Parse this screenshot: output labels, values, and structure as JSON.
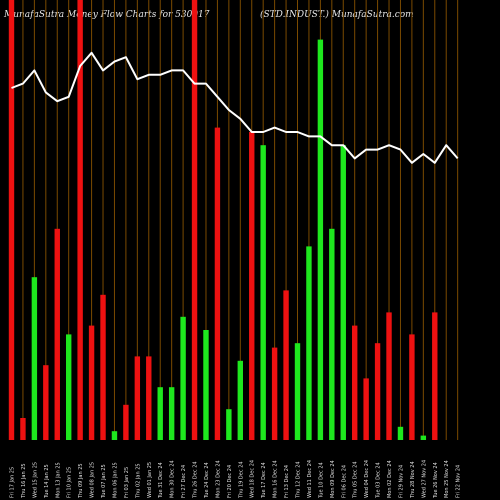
{
  "header": {
    "left": "MunafaSutra  Money Flow  Charts for 530017",
    "right": "(STD.INDUST.) MunafaSutra.com"
  },
  "colors": {
    "background": "#000000",
    "positive": "#1ee81e",
    "negative": "#ee1111",
    "grid": "#7a4a00",
    "price_line": "#ffffff",
    "labels": "#e0e0e0"
  },
  "chart_data": {
    "type": "bar",
    "title": "",
    "xlabel": "",
    "ylabel": "",
    "ylim": [
      0,
      100
    ],
    "grid": true,
    "categories": [
      "Fri 17 Jan 2025",
      "Thu 16 Jan 2025",
      "Wed 15 Jan 2025",
      "Tue 14 Jan 2025",
      "Mon 13 Jan 2025",
      "Fri 10 Jan 2025",
      "Thu 09 Jan 2025",
      "Wed 08 Jan 2025",
      "Tue 07 Jan 2025",
      "Mon 06 Jan 2025",
      "Fri 03 Jan 2025",
      "Thu 02 Jan 2025",
      "Wed 01 Jan 2025",
      "Tue 31 Dec 2024",
      "Mon 30 Dec 2024",
      "Fri 27 Dec 2024",
      "Thu 26 Dec 2024",
      "Tue 24 Dec 2024",
      "Mon 23 Dec 2024",
      "Fri 20 Dec 2024",
      "Thu 19 Dec 2024",
      "Wed 18 Dec 2024",
      "Tue 17 Dec 2024",
      "Mon 16 Dec 2024",
      "Fri 13 Dec 2024",
      "Thu 12 Dec 2024",
      "Wed 11 Dec 2024",
      "Tue 10 Dec 2024",
      "Mon 09 Dec 2024",
      "Fri 06 Dec 2024",
      "Thu 05 Dec 2024",
      "Wed 04 Dec 2024",
      "Tue 03 Dec 2024",
      "Mon 02 Dec 2024",
      "Fri 29 Nov 2024",
      "Thu 28 Nov 2024",
      "Wed 27 Nov 2024",
      "Tue 26 Nov 2024",
      "Mon 25 Nov 2024",
      "Fri 22 Nov 2024"
    ],
    "tick_labels": [
      "Fri 17 Jan 25",
      "Thu 16 Jan 25",
      "Wed 15 Jan 25",
      "Tue 14 Jan 25",
      "Mon 13 Jan 25",
      "Fri 10 Jan 25",
      "Thu 09 Jan 25",
      "Wed 08 Jan 25",
      "Tue 07 Jan 25",
      "Mon 06 Jan 25",
      "Fri 03 Jan 25",
      "Thu 02 Jan 25",
      "Wed 01 Jan 25",
      "Tue 31 Dec 24",
      "Mon 30 Dec 24",
      "Fri 27 Dec 24",
      "Thu 26 Dec 24",
      "Tue 24 Dec 24",
      "Mon 23 Dec 24",
      "Fri 20 Dec 24",
      "Thu 19 Dec 24",
      "Wed 18 Dec 24",
      "Tue 17 Dec 24",
      "Mon 16 Dec 24",
      "Fri 13 Dec 24",
      "Thu 12 Dec 24",
      "Wed 11 Dec 24",
      "Tue 10 Dec 24",
      "Mon 09 Dec 24",
      "Fri 06 Dec 24",
      "Thu 05 Dec 24",
      "Wed 04 Dec 24",
      "Tue 03 Dec 24",
      "Mon 02 Dec 24",
      "Fri 29 Nov 24",
      "Thu 28 Nov 24",
      "Wed 27 Nov 24",
      "Tue 26 Nov 24",
      "Mon 25 Nov 24",
      "Fri 22 Nov 24"
    ],
    "values": [
      100,
      5,
      37,
      17,
      48,
      24,
      100,
      26,
      33,
      2,
      8,
      19,
      19,
      12,
      12,
      28,
      100,
      25,
      71,
      7,
      18,
      70,
      67,
      21,
      34,
      22,
      44,
      91,
      48,
      67,
      26,
      14,
      22,
      29,
      3,
      24,
      1,
      29,
      0,
      0
    ],
    "colors": [
      "red",
      "red",
      "green",
      "red",
      "red",
      "green",
      "red",
      "red",
      "red",
      "green",
      "red",
      "red",
      "red",
      "green",
      "green",
      "green",
      "red",
      "green",
      "red",
      "green",
      "green",
      "red",
      "green",
      "red",
      "red",
      "green",
      "green",
      "green",
      "green",
      "green",
      "red",
      "red",
      "red",
      "red",
      "green",
      "red",
      "green",
      "red",
      "red",
      "red"
    ],
    "price_line": [
      80,
      81,
      84,
      79,
      77,
      78,
      85,
      88,
      84,
      86,
      87,
      82,
      83,
      83,
      84,
      84,
      81,
      81,
      78,
      75,
      73,
      70,
      70,
      71,
      70,
      70,
      69,
      69,
      67,
      67,
      64,
      66,
      66,
      67,
      66,
      63,
      65,
      63,
      67,
      64
    ]
  }
}
